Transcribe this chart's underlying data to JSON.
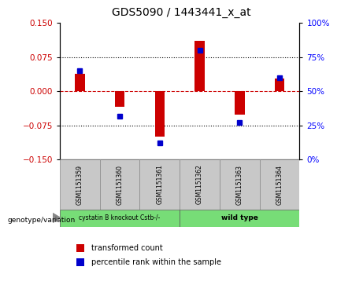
{
  "title": "GDS5090 / 1443441_x_at",
  "samples": [
    "GSM1151359",
    "GSM1151360",
    "GSM1151361",
    "GSM1151362",
    "GSM1151363",
    "GSM1151364"
  ],
  "red_values": [
    0.038,
    -0.035,
    -0.1,
    0.11,
    -0.052,
    0.028
  ],
  "blue_values_pct": [
    65,
    32,
    12,
    80,
    27,
    60
  ],
  "ylim_left": [
    -0.15,
    0.15
  ],
  "ylim_right": [
    0,
    100
  ],
  "yticks_left": [
    -0.15,
    -0.075,
    0,
    0.075,
    0.15
  ],
  "yticks_right": [
    0,
    25,
    50,
    75,
    100
  ],
  "group1_label": "cystatin B knockout Cstb-/-",
  "group2_label": "wild type",
  "group1_color": "#77DD77",
  "group2_color": "#77DD77",
  "bar_color": "#CC0000",
  "dot_color": "#0000CC",
  "legend_red_label": "transformed count",
  "legend_blue_label": "percentile rank within the sample",
  "xlabel_label": "genotype/variation",
  "sample_bg": "#C8C8C8",
  "bar_width": 0.25
}
